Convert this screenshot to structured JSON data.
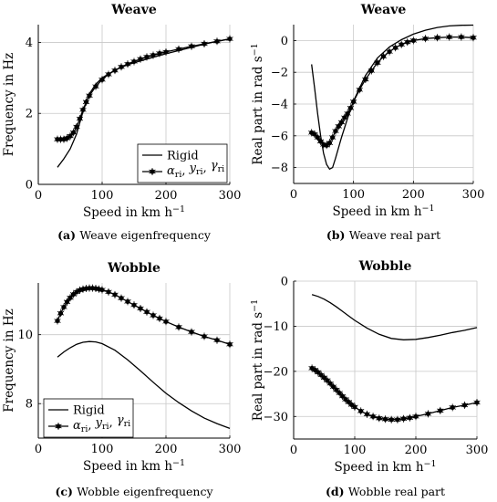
{
  "captions": [
    {
      "letter": "(a)",
      "text": "Weave eigenfrequency"
    },
    {
      "letter": "(b)",
      "text": "Weave real part"
    },
    {
      "letter": "(c)",
      "text": "Wobble eigenfrequency"
    },
    {
      "letter": "(d)",
      "text": "Wobble real part"
    }
  ],
  "chart_data": [
    {
      "type": "line",
      "title": "Weave",
      "xlabel": "Speed in km h⁻¹",
      "ylabel": "Frequency in Hz",
      "xlim": [
        0,
        300
      ],
      "ylim": [
        0,
        4.5
      ],
      "xticks": [
        0,
        100,
        200,
        300
      ],
      "yticks": [
        0,
        2,
        4
      ],
      "grid": true,
      "legend": "bottom-right",
      "series": [
        {
          "name": "Rigid",
          "marker": false,
          "x": [
            30,
            40,
            50,
            60,
            70,
            80,
            90,
            100,
            120,
            140,
            160,
            180,
            200,
            220,
            240,
            260,
            280,
            300
          ],
          "y": [
            0.48,
            0.72,
            1.0,
            1.42,
            2.05,
            2.55,
            2.82,
            3.0,
            3.22,
            3.37,
            3.48,
            3.58,
            3.68,
            3.77,
            3.86,
            3.95,
            4.03,
            4.1
          ]
        },
        {
          "name": "αri, yri, γri",
          "marker": true,
          "x": [
            30,
            35,
            40,
            45,
            50,
            55,
            60,
            65,
            70,
            75,
            80,
            90,
            100,
            110,
            120,
            130,
            140,
            150,
            160,
            170,
            180,
            190,
            200,
            220,
            240,
            260,
            280,
            300
          ],
          "y": [
            1.27,
            1.27,
            1.27,
            1.3,
            1.36,
            1.46,
            1.62,
            1.85,
            2.1,
            2.32,
            2.5,
            2.76,
            2.95,
            3.1,
            3.21,
            3.31,
            3.39,
            3.46,
            3.53,
            3.59,
            3.64,
            3.69,
            3.73,
            3.81,
            3.89,
            3.96,
            4.03,
            4.1
          ]
        }
      ]
    },
    {
      "type": "line",
      "title": "Weave",
      "xlabel": "Speed in km h⁻¹",
      "ylabel": "Real part in rad s⁻¹",
      "xlim": [
        0,
        300
      ],
      "ylim": [
        -9,
        1
      ],
      "xticks": [
        0,
        100,
        200,
        300
      ],
      "yticks": [
        0,
        -2,
        -4,
        -6,
        -8
      ],
      "grid": true,
      "series": [
        {
          "name": "Rigid",
          "marker": false,
          "x": [
            30,
            35,
            40,
            45,
            50,
            55,
            60,
            65,
            70,
            80,
            90,
            100,
            120,
            140,
            160,
            180,
            200,
            220,
            240,
            260,
            280,
            300
          ],
          "y": [
            -1.5,
            -3.0,
            -4.6,
            -6.0,
            -7.1,
            -7.8,
            -8.1,
            -8.0,
            -7.4,
            -6.1,
            -4.9,
            -3.8,
            -2.2,
            -1.1,
            -0.4,
            0.05,
            0.4,
            0.65,
            0.82,
            0.92,
            0.96,
            0.97
          ]
        },
        {
          "name": "αri, yri, γri",
          "marker": true,
          "x": [
            30,
            35,
            40,
            45,
            50,
            55,
            60,
            65,
            70,
            75,
            80,
            85,
            90,
            95,
            100,
            110,
            120,
            130,
            140,
            150,
            160,
            170,
            180,
            190,
            200,
            220,
            240,
            260,
            280,
            300
          ],
          "y": [
            -5.8,
            -5.9,
            -6.1,
            -6.35,
            -6.55,
            -6.6,
            -6.45,
            -6.1,
            -5.7,
            -5.4,
            -5.15,
            -4.85,
            -4.6,
            -4.25,
            -3.85,
            -3.1,
            -2.45,
            -1.9,
            -1.4,
            -1.0,
            -0.7,
            -0.45,
            -0.25,
            -0.1,
            0.0,
            0.12,
            0.18,
            0.22,
            0.22,
            0.18
          ]
        }
      ]
    },
    {
      "type": "line",
      "title": "Wobble",
      "xlabel": "Speed in km h⁻¹",
      "ylabel": "Frequency in Hz",
      "xlim": [
        0,
        300
      ],
      "ylim": [
        7,
        11.5
      ],
      "xticks": [
        0,
        100,
        200,
        300
      ],
      "yticks": [
        8,
        10
      ],
      "grid": true,
      "legend": "bottom-left",
      "series": [
        {
          "name": "Rigid",
          "marker": false,
          "x": [
            30,
            40,
            50,
            60,
            70,
            80,
            90,
            100,
            120,
            140,
            160,
            180,
            200,
            220,
            240,
            260,
            280,
            300
          ],
          "y": [
            9.35,
            9.5,
            9.62,
            9.72,
            9.78,
            9.8,
            9.79,
            9.74,
            9.55,
            9.27,
            8.95,
            8.62,
            8.3,
            8.03,
            7.79,
            7.58,
            7.42,
            7.28
          ]
        },
        {
          "name": "αri, yri, γri",
          "marker": true,
          "x": [
            30,
            35,
            40,
            45,
            50,
            55,
            60,
            65,
            70,
            75,
            80,
            85,
            90,
            95,
            100,
            110,
            120,
            130,
            140,
            150,
            160,
            170,
            180,
            190,
            200,
            220,
            240,
            260,
            280,
            300
          ],
          "y": [
            10.4,
            10.62,
            10.8,
            10.95,
            11.07,
            11.17,
            11.24,
            11.29,
            11.32,
            11.34,
            11.35,
            11.35,
            11.34,
            11.32,
            11.3,
            11.24,
            11.16,
            11.06,
            10.96,
            10.86,
            10.76,
            10.66,
            10.56,
            10.47,
            10.38,
            10.22,
            10.08,
            9.95,
            9.84,
            9.72
          ]
        }
      ]
    },
    {
      "type": "line",
      "title": "Wobble",
      "xlabel": "Speed in km h⁻¹",
      "ylabel": "Real part in rad s⁻¹",
      "xlim": [
        0,
        300
      ],
      "ylim": [
        -35,
        0
      ],
      "xticks": [
        0,
        100,
        200,
        300
      ],
      "yticks": [
        0,
        -10,
        -20,
        -30
      ],
      "grid": true,
      "series": [
        {
          "name": "Rigid",
          "marker": false,
          "x": [
            30,
            40,
            50,
            60,
            70,
            80,
            90,
            100,
            120,
            140,
            160,
            180,
            200,
            220,
            240,
            260,
            280,
            300
          ],
          "y": [
            -3.0,
            -3.4,
            -4.0,
            -4.8,
            -5.7,
            -6.7,
            -7.7,
            -8.7,
            -10.4,
            -11.8,
            -12.7,
            -13.0,
            -12.9,
            -12.5,
            -12.0,
            -11.4,
            -10.9,
            -10.3
          ]
        },
        {
          "name": "αri, yri, γri",
          "marker": true,
          "x": [
            30,
            35,
            40,
            45,
            50,
            55,
            60,
            65,
            70,
            75,
            80,
            85,
            90,
            95,
            100,
            110,
            120,
            130,
            140,
            150,
            160,
            170,
            180,
            190,
            200,
            220,
            240,
            260,
            280,
            300
          ],
          "y": [
            -19.3,
            -19.7,
            -20.2,
            -20.8,
            -21.4,
            -22.0,
            -22.7,
            -23.4,
            -24.1,
            -24.8,
            -25.5,
            -26.2,
            -26.8,
            -27.4,
            -27.9,
            -28.8,
            -29.5,
            -30.0,
            -30.4,
            -30.6,
            -30.7,
            -30.7,
            -30.5,
            -30.3,
            -30.0,
            -29.4,
            -28.7,
            -28.0,
            -27.5,
            -26.9
          ]
        }
      ]
    }
  ]
}
